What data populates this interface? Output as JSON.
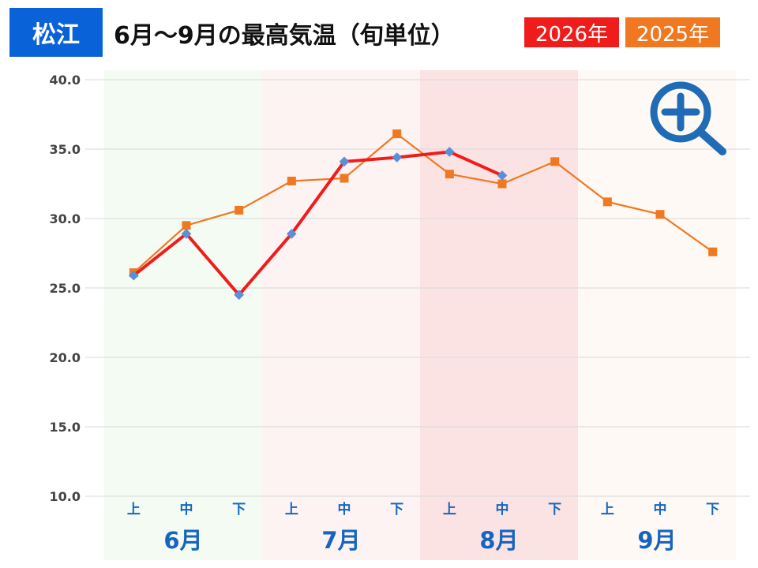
{
  "header": {
    "city": "松江",
    "title": "6月～9月の最高気温（旬単位）",
    "legend": [
      {
        "label": "2026年",
        "color": "#f01c1c"
      },
      {
        "label": "2025年",
        "color": "#f07820"
      }
    ]
  },
  "zoom_button": {
    "icon": "zoom-in-icon",
    "color": "#1f6bb5"
  },
  "chart_data": {
    "type": "line",
    "ylim": [
      10,
      40
    ],
    "yticks": [
      "40.0",
      "35.0",
      "30.0",
      "25.0",
      "20.0",
      "15.0",
      "10.0"
    ],
    "grid": true,
    "categories": [
      "上",
      "中",
      "下",
      "上",
      "中",
      "下",
      "上",
      "中",
      "下",
      "上",
      "中",
      "下"
    ],
    "months": [
      {
        "label": "6月",
        "band_color": "#f3fbf3"
      },
      {
        "label": "7月",
        "band_color": "#fdf3f3"
      },
      {
        "label": "8月",
        "band_color": "#fbe3e3"
      },
      {
        "label": "9月",
        "band_color": "#fef9f4"
      }
    ],
    "series": [
      {
        "name": "2026年",
        "color": "#f01c1c",
        "marker_color": "#5b8fd8",
        "values": [
          25.9,
          28.9,
          24.5,
          28.9,
          34.1,
          34.4,
          34.8,
          33.1,
          null,
          null,
          null,
          null
        ]
      },
      {
        "name": "2025年",
        "color": "#f07820",
        "marker_color": "#f07820",
        "values": [
          26.1,
          29.5,
          30.6,
          32.7,
          32.9,
          36.1,
          33.2,
          32.5,
          34.1,
          31.2,
          30.3,
          27.6
        ]
      }
    ]
  }
}
